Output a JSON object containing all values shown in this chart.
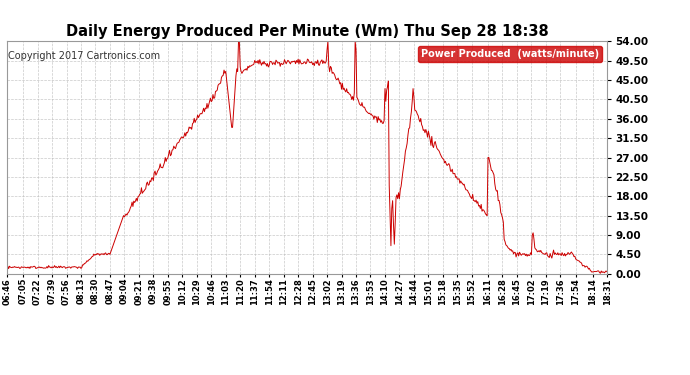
{
  "title": "Daily Energy Produced Per Minute (Wm) Thu Sep 28 18:38",
  "copyright": "Copyright 2017 Cartronics.com",
  "legend_label": "Power Produced  (watts/minute)",
  "legend_bg": "#cc0000",
  "legend_text_color": "#ffffff",
  "line_color": "#cc0000",
  "bg_color": "#ffffff",
  "plot_bg_color": "#ffffff",
  "grid_color": "#bbbbbb",
  "ylim": [
    0,
    54.0
  ],
  "yticks": [
    0.0,
    4.5,
    9.0,
    13.5,
    18.0,
    22.5,
    27.0,
    31.5,
    36.0,
    40.5,
    45.0,
    49.5,
    54.0
  ],
  "ylabel_color": "#000000",
  "title_color": "#000000",
  "figsize": [
    6.9,
    3.75
  ],
  "dpi": 100,
  "x_tick_times": [
    "06:46",
    "07:05",
    "07:22",
    "07:39",
    "07:56",
    "08:13",
    "08:30",
    "08:47",
    "09:04",
    "09:21",
    "09:38",
    "09:55",
    "10:12",
    "10:29",
    "10:46",
    "11:03",
    "11:20",
    "11:37",
    "11:54",
    "12:11",
    "12:28",
    "12:45",
    "13:02",
    "13:19",
    "13:36",
    "13:53",
    "14:10",
    "14:27",
    "14:44",
    "15:01",
    "15:18",
    "15:35",
    "15:52",
    "16:11",
    "16:28",
    "16:45",
    "17:02",
    "17:19",
    "17:36",
    "17:54",
    "18:14",
    "18:31"
  ],
  "start_hhmm": "06:46",
  "end_hhmm": "18:31"
}
